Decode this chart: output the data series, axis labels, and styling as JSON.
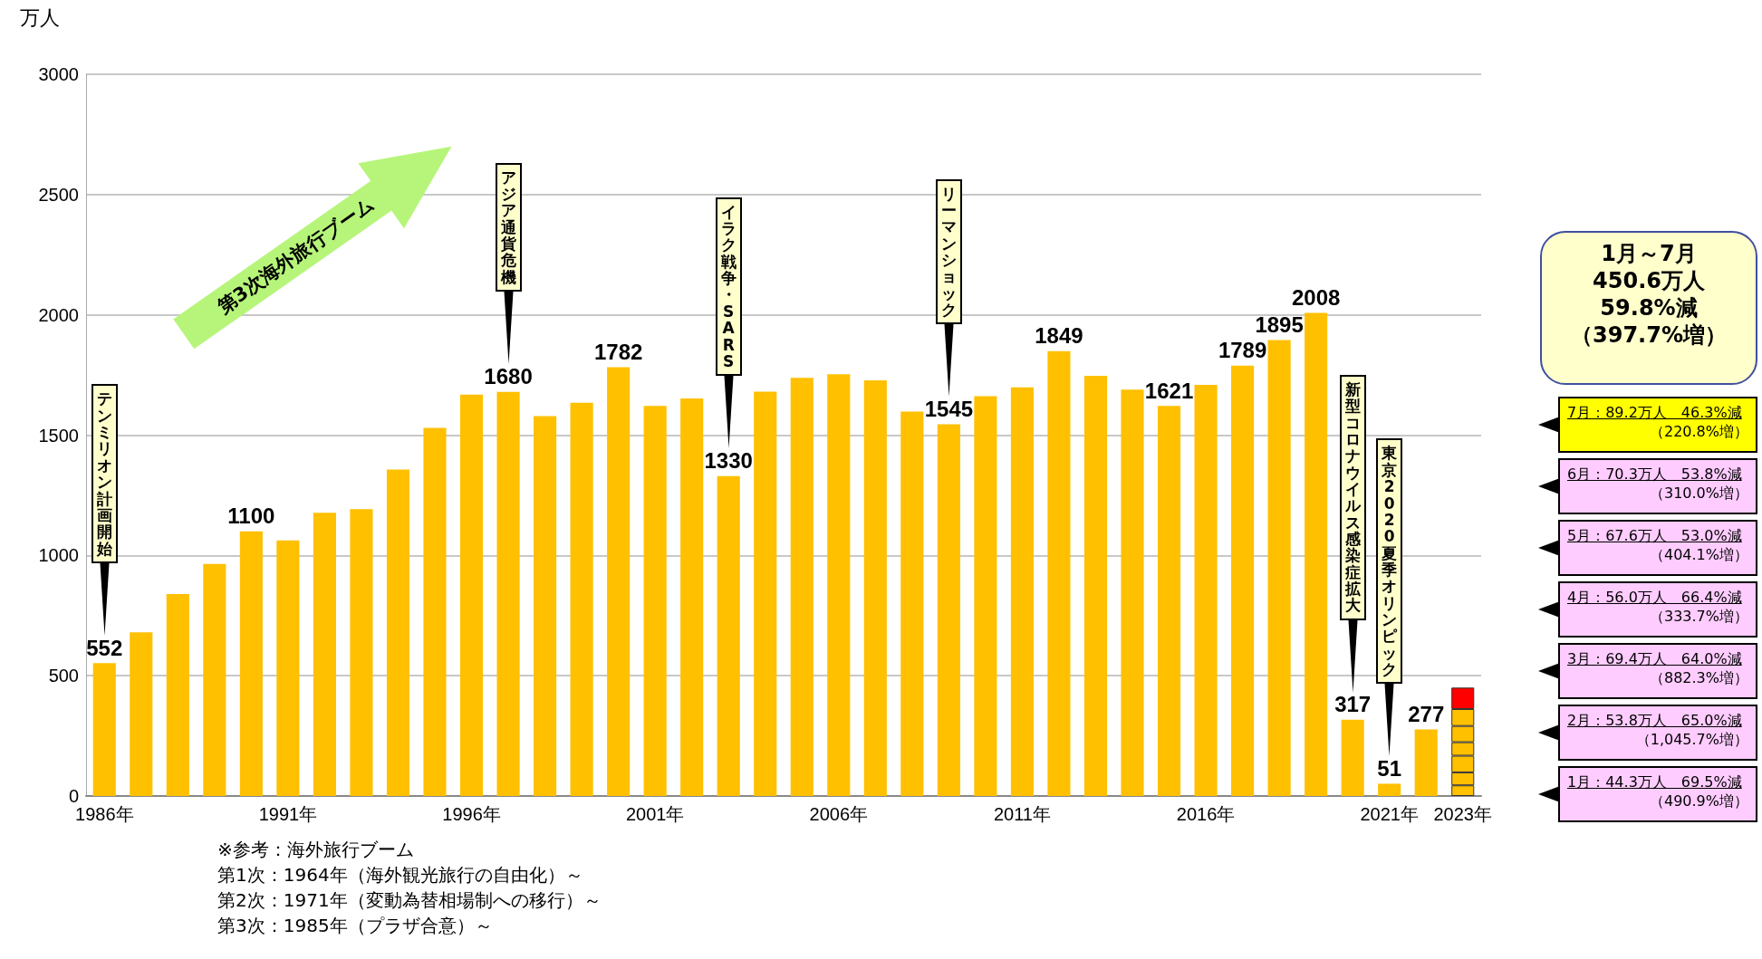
{
  "chart_data": {
    "type": "bar",
    "ylabel": "万人",
    "stacked": true,
    "grid": "y",
    "categories": [
      "1986年",
      null,
      null,
      null,
      null,
      "1991年",
      null,
      null,
      null,
      null,
      "1996年",
      null,
      null,
      null,
      null,
      "2001年",
      null,
      null,
      null,
      null,
      "2006年",
      null,
      null,
      null,
      null,
      "2011年",
      null,
      null,
      null,
      null,
      "2016年",
      null,
      null,
      null,
      null,
      "2021年",
      null,
      "2023年"
    ],
    "ylim": [
      0,
      3000
    ],
    "yticks": [
      0,
      500,
      1000,
      1500,
      2000,
      2500,
      3000
    ],
    "series": [
      {
        "color": "#ffc000",
        "values": [
          552,
          680,
          839,
          965,
          1100,
          1062,
          1177,
          1192,
          1357,
          1530,
          1668,
          1680,
          1579,
          1635,
          1782,
          1621,
          1652,
          1330,
          1681,
          1738,
          1753,
          1728,
          1598,
          1545,
          1662,
          1699,
          1849,
          1747,
          1689,
          1621,
          1709,
          1789,
          1895,
          2008,
          317,
          51,
          277,
          null
        ],
        "value_labels": [
          "552",
          null,
          null,
          null,
          "1100",
          null,
          null,
          null,
          null,
          null,
          null,
          "1680",
          null,
          null,
          "1782",
          null,
          null,
          "1330",
          null,
          null,
          null,
          null,
          null,
          "1545",
          null,
          null,
          "1849",
          null,
          null,
          "1621",
          null,
          "1789",
          "1895",
          "2008",
          "317",
          "51",
          "277",
          null
        ]
      },
      {
        "color": "#ffc000",
        "values": [
          null,
          null,
          null,
          null,
          null,
          null,
          null,
          null,
          null,
          null,
          null,
          null,
          null,
          null,
          null,
          null,
          null,
          null,
          null,
          null,
          null,
          null,
          null,
          null,
          null,
          null,
          null,
          null,
          null,
          null,
          null,
          null,
          null,
          null,
          null,
          null,
          null,
          44.3
        ]
      },
      {
        "color": "#ffc000",
        "values": [
          null,
          null,
          null,
          null,
          null,
          null,
          null,
          null,
          null,
          null,
          null,
          null,
          null,
          null,
          null,
          null,
          null,
          null,
          null,
          null,
          null,
          null,
          null,
          null,
          null,
          null,
          null,
          null,
          null,
          null,
          null,
          null,
          null,
          null,
          null,
          null,
          null,
          53.8
        ]
      },
      {
        "color": "#ffc000",
        "values": [
          null,
          null,
          null,
          null,
          null,
          null,
          null,
          null,
          null,
          null,
          null,
          null,
          null,
          null,
          null,
          null,
          null,
          null,
          null,
          null,
          null,
          null,
          null,
          null,
          null,
          null,
          null,
          null,
          null,
          null,
          null,
          null,
          null,
          null,
          null,
          null,
          null,
          69.4
        ]
      },
      {
        "color": "#ffc000",
        "values": [
          null,
          null,
          null,
          null,
          null,
          null,
          null,
          null,
          null,
          null,
          null,
          null,
          null,
          null,
          null,
          null,
          null,
          null,
          null,
          null,
          null,
          null,
          null,
          null,
          null,
          null,
          null,
          null,
          null,
          null,
          null,
          null,
          null,
          null,
          null,
          null,
          null,
          56.0
        ]
      },
      {
        "color": "#ffc000",
        "values": [
          null,
          null,
          null,
          null,
          null,
          null,
          null,
          null,
          null,
          null,
          null,
          null,
          null,
          null,
          null,
          null,
          null,
          null,
          null,
          null,
          null,
          null,
          null,
          null,
          null,
          null,
          null,
          null,
          null,
          null,
          null,
          null,
          null,
          null,
          null,
          null,
          null,
          67.6
        ]
      },
      {
        "color": "#ffc000",
        "values": [
          null,
          null,
          null,
          null,
          null,
          null,
          null,
          null,
          null,
          null,
          null,
          null,
          null,
          null,
          null,
          null,
          null,
          null,
          null,
          null,
          null,
          null,
          null,
          null,
          null,
          null,
          null,
          null,
          null,
          null,
          null,
          null,
          null,
          null,
          null,
          null,
          null,
          70.3
        ]
      },
      {
        "color": "#ff0000",
        "values": [
          null,
          null,
          null,
          null,
          null,
          null,
          null,
          null,
          null,
          null,
          null,
          null,
          null,
          null,
          null,
          null,
          null,
          null,
          null,
          null,
          null,
          null,
          null,
          null,
          null,
          null,
          null,
          null,
          null,
          null,
          null,
          null,
          null,
          null,
          null,
          null,
          null,
          89.2
        ]
      }
    ],
    "annotations": [
      "第3次海外旅行ブーム",
      "※参考：海外旅行ブーム",
      "第1次：1964年（海外観光旅行の自由化）～",
      "第2次：1971年（変動為替相場制への移行）～",
      "第3次：1985年（プラザ合意）～",
      "1月～7月",
      "450.6万人",
      "59.8%減",
      "（397.7%増）",
      "7月：89.2万人　46.3%減",
      "（220.8%増）",
      "6月：70.3万人　53.8%減",
      "（310.0%増）",
      "5月：67.6万人　53.0%減",
      "（404.1%増）",
      "4月：56.0万人　66.4%減",
      "（333.7%増）",
      "3月：69.4万人　64.0%減",
      "（882.3%増）",
      "2月：53.8万人　65.0%減",
      "（1,045.7%増）",
      "1月：44.3万人　69.5%減",
      "（490.9%増）",
      "テンミリオン計画開始",
      "アジア通貨危機",
      "イラク戦争・SARS",
      "リーマンショック",
      "新型コロナウイルス感染症拡大",
      "東京2020夏季オリンピック"
    ]
  }
}
